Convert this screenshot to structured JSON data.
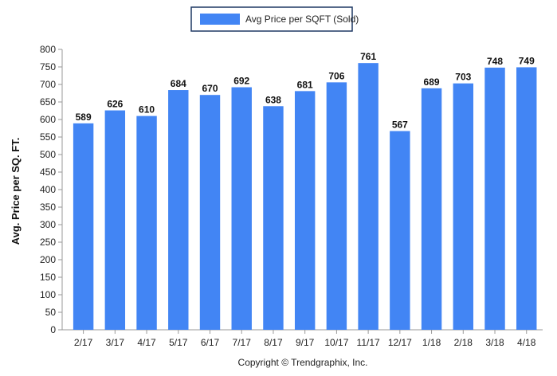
{
  "chart_data": {
    "type": "bar",
    "categories": [
      "2/17",
      "3/17",
      "4/17",
      "5/17",
      "6/17",
      "7/17",
      "8/17",
      "9/17",
      "10/17",
      "11/17",
      "12/17",
      "1/18",
      "2/18",
      "3/18",
      "4/18"
    ],
    "series": [
      {
        "name": "Avg Price per SQFT (Sold)",
        "values": [
          589,
          626,
          610,
          684,
          670,
          692,
          638,
          681,
          706,
          761,
          567,
          689,
          703,
          748,
          749
        ],
        "color": "#4285F4"
      }
    ],
    "ylabel": "Avg. Price per SQ. FT.",
    "xlabel": "",
    "ylim": [
      0,
      800
    ],
    "yticks": [
      0,
      50,
      100,
      150,
      200,
      250,
      300,
      350,
      400,
      450,
      500,
      550,
      600,
      650,
      700,
      750,
      800
    ],
    "grid": false,
    "legend_position": "top-center",
    "data_labels": true
  },
  "footer": {
    "copyright": "Copyright © Trendgraphix, Inc."
  },
  "colors": {
    "bar": "#4285F4",
    "axis": "#999999",
    "legend_border": "#1F3864"
  }
}
